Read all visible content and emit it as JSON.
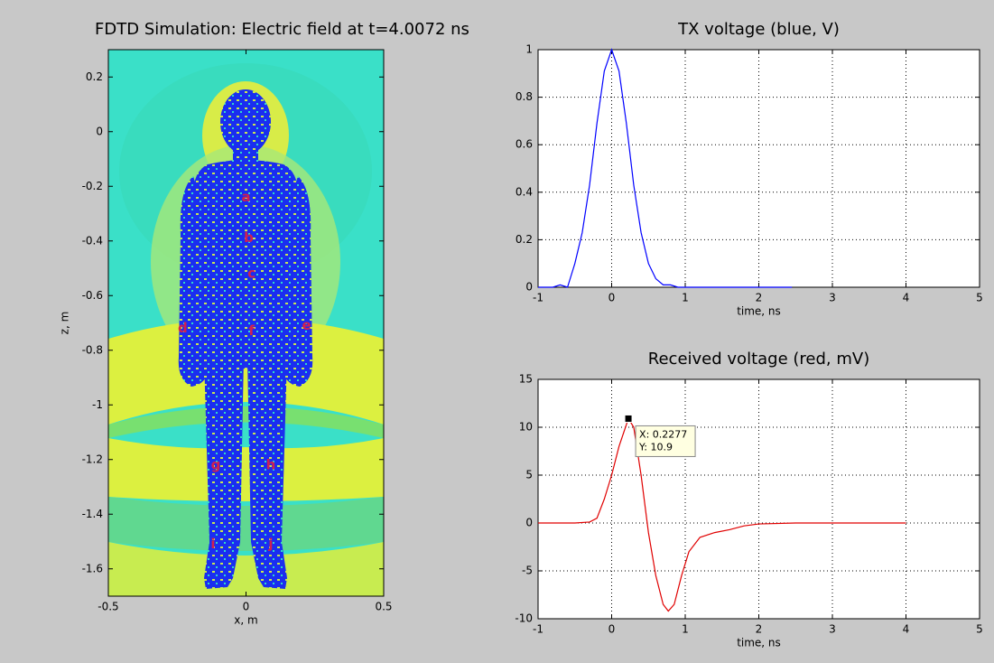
{
  "chart_data": [
    {
      "type": "image",
      "title": "FDTD Simulation: Electric field at t=4.0072 ns",
      "xlabel": "x, m",
      "ylabel": "z, m",
      "xlim": [
        -0.5,
        0.5
      ],
      "ylim": [
        -1.7,
        0.3
      ],
      "xticks": [
        -0.5,
        0,
        0.5
      ],
      "yticks": [
        0.2,
        0,
        -0.2,
        -0.4,
        -0.6,
        -0.8,
        -1,
        -1.2,
        -1.4,
        -1.6
      ],
      "grid": false,
      "annotations": [
        {
          "text": "a",
          "x": 0.0,
          "y": -0.24
        },
        {
          "text": "b",
          "x": 0.01,
          "y": -0.39
        },
        {
          "text": "c",
          "x": 0.02,
          "y": -0.52
        },
        {
          "text": "d",
          "x": -0.23,
          "y": -0.72
        },
        {
          "text": "e",
          "x": 0.22,
          "y": -0.71
        },
        {
          "text": "f",
          "x": 0.02,
          "y": -0.73
        },
        {
          "text": "g",
          "x": -0.11,
          "y": -1.22
        },
        {
          "text": "h",
          "x": 0.09,
          "y": -1.22
        },
        {
          "text": "i",
          "x": -0.12,
          "y": -1.51
        },
        {
          "text": "j",
          "x": 0.09,
          "y": -1.51
        }
      ]
    },
    {
      "type": "line",
      "title": "TX voltage (blue, V)",
      "xlabel": "time, ns",
      "xlim": [
        -1,
        5
      ],
      "ylim": [
        0,
        1
      ],
      "xticks": [
        -1,
        0,
        1,
        2,
        3,
        4,
        5
      ],
      "yticks": [
        0,
        0.2,
        0.4,
        0.6,
        0.8,
        1
      ],
      "grid": true,
      "color": "#0000ff",
      "x": [
        -1,
        -0.9,
        -0.8,
        -0.7,
        -0.6,
        -0.5,
        -0.4,
        -0.3,
        -0.2,
        -0.1,
        0,
        0.1,
        0.2,
        0.3,
        0.4,
        0.5,
        0.6,
        0.7,
        0.8,
        0.9,
        1,
        1.5,
        2,
        2.45
      ],
      "values": [
        0,
        0,
        0,
        0.01,
        0,
        0.1,
        0.23,
        0.43,
        0.69,
        0.91,
        1,
        0.91,
        0.69,
        0.43,
        0.23,
        0.1,
        0.036,
        0.01,
        0.01,
        0,
        0,
        0,
        0,
        0
      ]
    },
    {
      "type": "line",
      "title": "Received voltage (red, mV)",
      "xlabel": "time, ns",
      "xlim": [
        -1,
        5
      ],
      "ylim": [
        -10,
        15
      ],
      "xticks": [
        -1,
        0,
        1,
        2,
        3,
        4,
        5
      ],
      "yticks": [
        -10,
        -5,
        0,
        5,
        10,
        15
      ],
      "grid": true,
      "color": "#e00000",
      "x": [
        -1,
        -0.5,
        -0.3,
        -0.2,
        -0.1,
        0,
        0.1,
        0.2277,
        0.3,
        0.4,
        0.5,
        0.6,
        0.7,
        0.77,
        0.85,
        0.95,
        1.05,
        1.2,
        1.4,
        1.6,
        1.8,
        2,
        2.5,
        3,
        3.5,
        4
      ],
      "values": [
        0,
        0,
        0.1,
        0.5,
        2.5,
        5,
        8,
        10.9,
        10,
        5,
        -1,
        -5.5,
        -8.5,
        -9.2,
        -8.5,
        -5.5,
        -3,
        -1.5,
        -1,
        -0.7,
        -0.3,
        -0.1,
        0,
        0,
        0,
        0
      ],
      "datatip": {
        "x": 0.2277,
        "y": 10.9,
        "x_label": "X: 0.2277",
        "y_label": "Y: 10.9"
      }
    }
  ]
}
